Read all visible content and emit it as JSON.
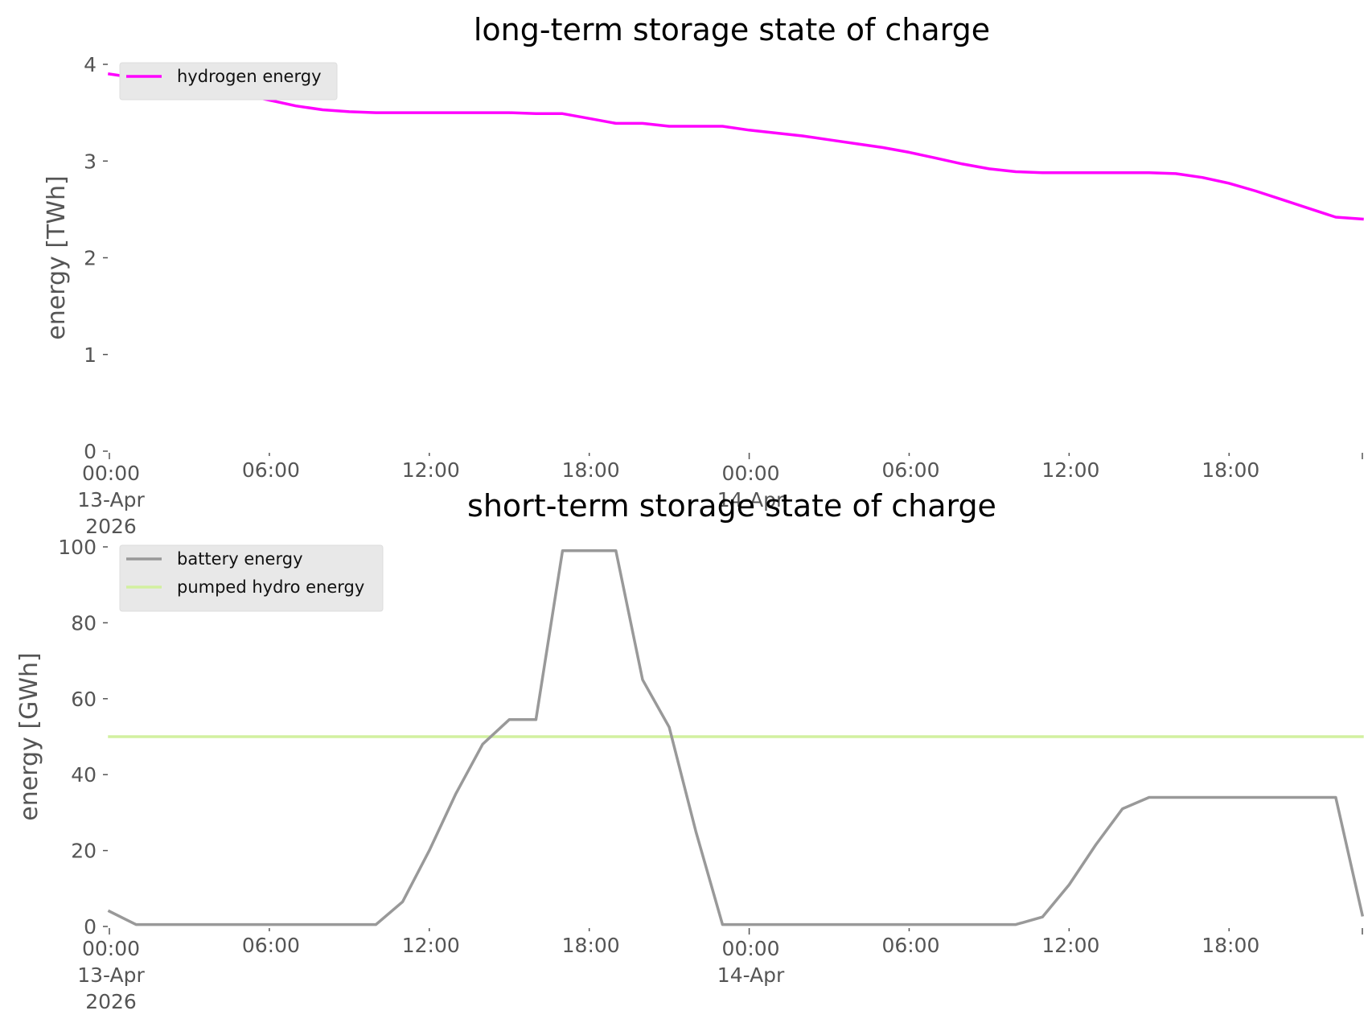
{
  "chart_data": [
    {
      "type": "line",
      "title": "long-term storage state of charge",
      "ylabel": "energy [TWh]",
      "xlabel": "",
      "ylim": [
        0,
        4
      ],
      "yticks": [
        0,
        1,
        2,
        3,
        4
      ],
      "xlim": [
        "2026-04-13 00:00",
        "2026-04-14 23:00"
      ],
      "xtick_labels": [
        [
          "00:00",
          "13-Apr",
          "2026"
        ],
        [
          "06:00"
        ],
        [
          "12:00"
        ],
        [
          "18:00"
        ],
        [
          "00:00",
          "14-Apr"
        ],
        [
          "06:00"
        ],
        [
          "12:00"
        ],
        [
          "18:00"
        ]
      ],
      "x": [
        "2026-04-13 00:00",
        "2026-04-13 01:00",
        "2026-04-13 02:00",
        "2026-04-13 03:00",
        "2026-04-13 04:00",
        "2026-04-13 05:00",
        "2026-04-13 06:00",
        "2026-04-13 07:00",
        "2026-04-13 08:00",
        "2026-04-13 09:00",
        "2026-04-13 10:00",
        "2026-04-13 11:00",
        "2026-04-13 12:00",
        "2026-04-13 13:00",
        "2026-04-13 14:00",
        "2026-04-13 15:00",
        "2026-04-13 16:00",
        "2026-04-13 17:00",
        "2026-04-13 18:00",
        "2026-04-13 19:00",
        "2026-04-13 20:00",
        "2026-04-13 21:00",
        "2026-04-13 22:00",
        "2026-04-13 23:00",
        "2026-04-14 00:00",
        "2026-04-14 01:00",
        "2026-04-14 02:00",
        "2026-04-14 03:00",
        "2026-04-14 04:00",
        "2026-04-14 05:00",
        "2026-04-14 06:00",
        "2026-04-14 07:00",
        "2026-04-14 08:00",
        "2026-04-14 09:00",
        "2026-04-14 10:00",
        "2026-04-14 11:00",
        "2026-04-14 12:00",
        "2026-04-14 13:00",
        "2026-04-14 14:00",
        "2026-04-14 15:00",
        "2026-04-14 16:00",
        "2026-04-14 17:00",
        "2026-04-14 18:00",
        "2026-04-14 19:00",
        "2026-04-14 20:00",
        "2026-04-14 21:00",
        "2026-04-14 22:00",
        "2026-04-14 23:00"
      ],
      "series": [
        {
          "name": "hydrogen energy",
          "color": "#ff00ff",
          "values": [
            3.9,
            3.86,
            3.82,
            3.78,
            3.74,
            3.69,
            3.63,
            3.57,
            3.53,
            3.51,
            3.5,
            3.5,
            3.5,
            3.5,
            3.5,
            3.5,
            3.49,
            3.49,
            3.44,
            3.39,
            3.39,
            3.36,
            3.36,
            3.36,
            3.32,
            3.29,
            3.26,
            3.22,
            3.18,
            3.14,
            3.09,
            3.03,
            2.97,
            2.92,
            2.89,
            2.88,
            2.88,
            2.88,
            2.88,
            2.88,
            2.87,
            2.83,
            2.77,
            2.69,
            2.6,
            2.51,
            2.42,
            2.4
          ]
        }
      ],
      "legend_position": "upper-left",
      "grid": false
    },
    {
      "type": "line",
      "title": "short-term storage state of charge",
      "ylabel": "energy [GWh]",
      "xlabel": "",
      "ylim": [
        0,
        100
      ],
      "yticks": [
        0,
        20,
        40,
        60,
        80,
        100
      ],
      "xlim": [
        "2026-04-13 00:00",
        "2026-04-14 23:00"
      ],
      "xtick_labels": [
        [
          "00:00",
          "13-Apr",
          "2026"
        ],
        [
          "06:00"
        ],
        [
          "12:00"
        ],
        [
          "18:00"
        ],
        [
          "00:00",
          "14-Apr"
        ],
        [
          "06:00"
        ],
        [
          "12:00"
        ],
        [
          "18:00"
        ]
      ],
      "x": [
        "2026-04-13 00:00",
        "2026-04-13 01:00",
        "2026-04-13 02:00",
        "2026-04-13 03:00",
        "2026-04-13 04:00",
        "2026-04-13 05:00",
        "2026-04-13 06:00",
        "2026-04-13 07:00",
        "2026-04-13 08:00",
        "2026-04-13 09:00",
        "2026-04-13 10:00",
        "2026-04-13 11:00",
        "2026-04-13 12:00",
        "2026-04-13 13:00",
        "2026-04-13 14:00",
        "2026-04-13 15:00",
        "2026-04-13 16:00",
        "2026-04-13 17:00",
        "2026-04-13 18:00",
        "2026-04-13 19:00",
        "2026-04-13 20:00",
        "2026-04-13 21:00",
        "2026-04-13 22:00",
        "2026-04-13 23:00",
        "2026-04-14 00:00",
        "2026-04-14 01:00",
        "2026-04-14 02:00",
        "2026-04-14 03:00",
        "2026-04-14 04:00",
        "2026-04-14 05:00",
        "2026-04-14 06:00",
        "2026-04-14 07:00",
        "2026-04-14 08:00",
        "2026-04-14 09:00",
        "2026-04-14 10:00",
        "2026-04-14 11:00",
        "2026-04-14 12:00",
        "2026-04-14 13:00",
        "2026-04-14 14:00",
        "2026-04-14 15:00",
        "2026-04-14 16:00",
        "2026-04-14 17:00",
        "2026-04-14 18:00",
        "2026-04-14 19:00",
        "2026-04-14 20:00",
        "2026-04-14 21:00",
        "2026-04-14 22:00",
        "2026-04-14 23:00"
      ],
      "series": [
        {
          "name": "battery energy",
          "color": "#999999",
          "values": [
            4,
            0.5,
            0.5,
            0.5,
            0.5,
            0.5,
            0.5,
            0.5,
            0.5,
            0.5,
            0.5,
            6.5,
            20,
            35,
            48,
            54.5,
            54.5,
            99,
            99,
            99,
            65,
            52.5,
            25,
            0.5,
            0.5,
            0.5,
            0.5,
            0.5,
            0.5,
            0.5,
            0.5,
            0.5,
            0.5,
            0.5,
            0.5,
            2.5,
            11,
            21.5,
            31,
            34,
            34,
            34,
            34,
            34,
            34,
            34,
            34,
            3
          ]
        },
        {
          "name": "pumped hydro energy",
          "color": "#d2f0a0",
          "values": [
            50,
            50,
            50,
            50,
            50,
            50,
            50,
            50,
            50,
            50,
            50,
            50,
            50,
            50,
            50,
            50,
            50,
            50,
            50,
            50,
            50,
            50,
            50,
            50,
            50,
            50,
            50,
            50,
            50,
            50,
            50,
            50,
            50,
            50,
            50,
            50,
            50,
            50,
            50,
            50,
            50,
            50,
            50,
            50,
            50,
            50,
            50,
            50
          ]
        }
      ],
      "legend_position": "upper-left",
      "grid": false
    }
  ]
}
